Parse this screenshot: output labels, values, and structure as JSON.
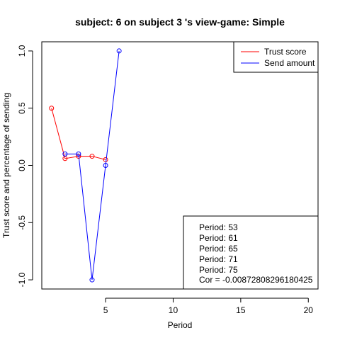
{
  "chart_data": {
    "type": "line",
    "title": "subject:  6  on subject  3 's view-game:  Simple",
    "xlabel": "Period",
    "ylabel": "Trust score and percentage of sending",
    "xlim": [
      0.28,
      20.72
    ],
    "ylim": [
      -1.08,
      1.08
    ],
    "x_ticks": [
      5,
      10,
      15,
      20
    ],
    "y_ticks": [
      -1.0,
      -0.5,
      0.0,
      0.5,
      1.0
    ],
    "y_tick_labels": [
      "-1.0",
      "-0.5",
      "0.0",
      "0.5",
      "1.0"
    ],
    "grid": false,
    "legend_position": "top-right",
    "series": [
      {
        "name": "Trust score",
        "color": "#ff0000",
        "x": [
          1,
          2,
          3,
          4,
          5
        ],
        "values": [
          0.5,
          0.06,
          0.08,
          0.08,
          0.05
        ]
      },
      {
        "name": "Send amount",
        "color": "#0000ff",
        "x": [
          2,
          3,
          4,
          5,
          6
        ],
        "values": [
          0.1,
          0.1,
          -1.0,
          0.0,
          1.0
        ]
      }
    ],
    "info_box": {
      "position": "bottom-right",
      "lines": [
        "Period:  53",
        "Period:  61",
        "Period:  65",
        "Period:  71",
        "Period:  75",
        "Cor =  -0.00872808296180425"
      ]
    }
  }
}
